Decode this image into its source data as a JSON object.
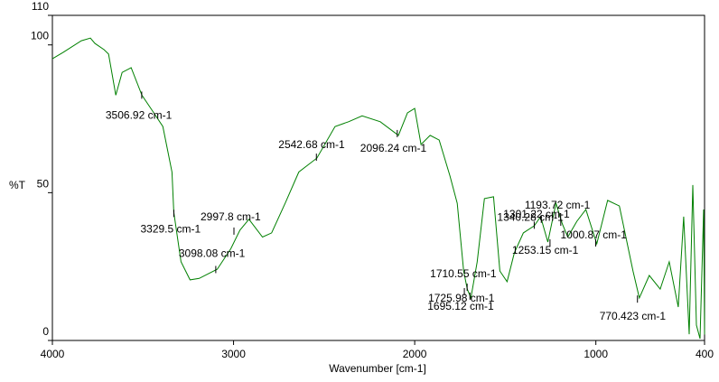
{
  "chart_data": {
    "type": "line",
    "x_label": "Wavenumber [cm-1]",
    "y_label": "%T",
    "xlim": [
      4000,
      400
    ],
    "ylim": [
      0,
      110
    ],
    "xticks": [
      4000,
      3000,
      2000,
      1000,
      400
    ],
    "yticks": [
      0,
      50,
      100,
      110
    ],
    "series": [
      {
        "color": "#008000",
        "x": [
          4000,
          3940,
          3840,
          3790,
          3765,
          3715,
          3690,
          3650,
          3615,
          3565,
          3506,
          3440,
          3390,
          3340,
          3330,
          3290,
          3240,
          3190,
          3090,
          3015,
          2965,
          2915,
          2840,
          2790,
          2715,
          2640,
          2540,
          2440,
          2365,
          2290,
          2190,
          2090,
          2040,
          2000,
          1965,
          1915,
          1865,
          1805,
          1765,
          1730,
          1710,
          1690,
          1655,
          1615,
          1565,
          1530,
          1490,
          1450,
          1400,
          1340,
          1305,
          1265,
          1220,
          1185,
          1155,
          1105,
          1055,
          995,
          935,
          870,
          795,
          760,
          705,
          645,
          595,
          545,
          515,
          485,
          465,
          445,
          425,
          405,
          400
        ],
        "values": [
          95.3,
          97.5,
          101.4,
          102.3,
          100.5,
          98.4,
          96.9,
          83,
          90.7,
          92.3,
          83,
          77,
          72.4,
          57,
          43.4,
          26.6,
          20.5,
          21,
          24.1,
          31,
          37.3,
          41,
          35,
          36.4,
          46.4,
          57,
          61.7,
          72.4,
          74,
          76,
          74,
          69.4,
          77,
          78.5,
          66.3,
          69.4,
          67.8,
          55.6,
          46.4,
          23.5,
          17.4,
          14.4,
          26.6,
          48,
          48.6,
          23.5,
          19.9,
          29.6,
          36.4,
          38.8,
          41.9,
          33.3,
          46.4,
          39.4,
          35,
          40.3,
          44.3,
          32.7,
          47.4,
          45.5,
          23.5,
          14.4,
          22,
          17.4,
          26.6,
          11.3,
          41.9,
          2.1,
          52.6,
          5.2,
          0.6,
          44.3,
          2
        ]
      }
    ],
    "annotations": [
      {
        "x": 3506.92,
        "y": 83,
        "label": "3506.92 cm-1"
      },
      {
        "x": 3329.5,
        "y": 43,
        "label": "3329.5 cm-1"
      },
      {
        "x": 2997.8,
        "y": 37,
        "label": "2997.8 cm-1"
      },
      {
        "x": 3098.08,
        "y": 24,
        "label": "3098.08 cm-1"
      },
      {
        "x": 2542.68,
        "y": 62,
        "label": "2542.68 cm-1"
      },
      {
        "x": 2096.24,
        "y": 70,
        "label": "2096.24 cm-1"
      },
      {
        "x": 1710.55,
        "y": 18,
        "label": "1710.55 cm-1"
      },
      {
        "x": 1725.98,
        "y": 16.5,
        "label": "1725.98 cm-1"
      },
      {
        "x": 1695.12,
        "y": 15,
        "label": "1695.12 cm-1"
      },
      {
        "x": 1301.22,
        "y": 41,
        "label": "1301.22 cm-1"
      },
      {
        "x": 1340.28,
        "y": 39,
        "label": "1340.28 cm-1"
      },
      {
        "x": 1193.72,
        "y": 40,
        "label": "1193.72 cm-1"
      },
      {
        "x": 1000.87,
        "y": 33,
        "label": "1000.87 cm-1"
      },
      {
        "x": 1253.15,
        "y": 33,
        "label": "1253.15 cm-1"
      },
      {
        "x": 770.423,
        "y": 14,
        "label": "770.423 cm-1"
      }
    ]
  }
}
